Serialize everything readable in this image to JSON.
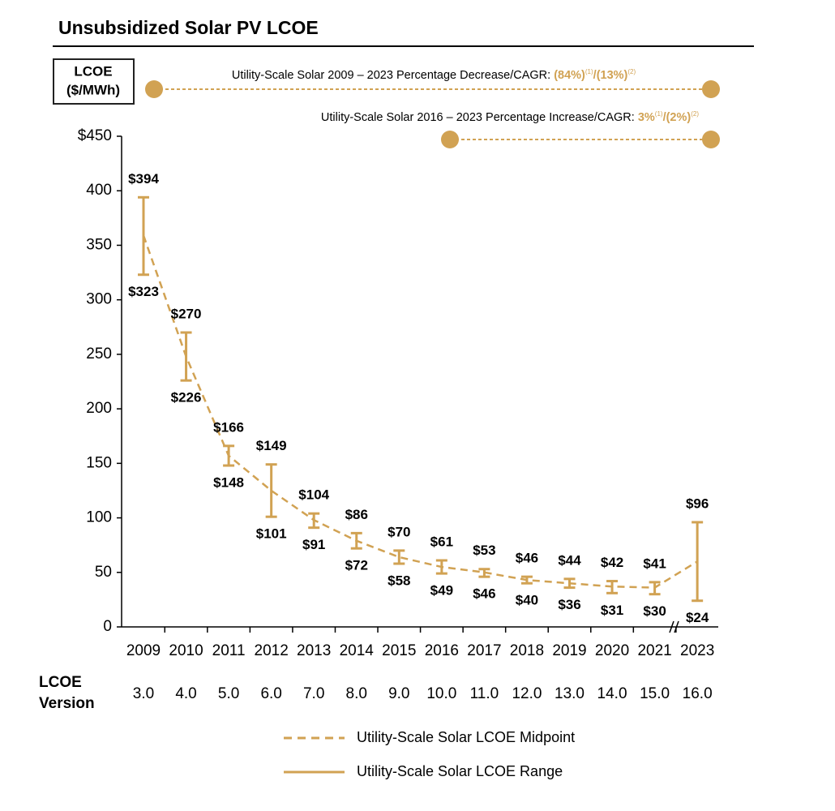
{
  "chart_data": {
    "type": "range",
    "title": "Unsubsidized Solar PV LCOE",
    "ylabel": [
      "LCOE",
      "($/MWh)"
    ],
    "categories": [
      "2009",
      "2010",
      "2011",
      "2012",
      "2013",
      "2014",
      "2015",
      "2016",
      "2017",
      "2018",
      "2019",
      "2020",
      "2021",
      "2023"
    ],
    "version_label": [
      "LCOE",
      "Version"
    ],
    "versions": [
      "3.0",
      "4.0",
      "5.0",
      "6.0",
      "7.0",
      "8.0",
      "9.0",
      "10.0",
      "11.0",
      "12.0",
      "13.0",
      "14.0",
      "15.0",
      "16.0"
    ],
    "ylim": [
      0,
      450
    ],
    "yticks": [
      0,
      50,
      100,
      150,
      200,
      250,
      300,
      350,
      400,
      {
        "value": 450,
        "label": "$450"
      }
    ],
    "series": [
      {
        "name": "Utility-Scale Solar LCOE Midpoint",
        "color": "#d1a253",
        "style": "dashed",
        "values": [
          359,
          248,
          157,
          125,
          98,
          79,
          64,
          55,
          50,
          43,
          40,
          37,
          36,
          60
        ]
      },
      {
        "name": "Utility-Scale Solar LCOE Range",
        "color": "#d1a253",
        "style": "solid",
        "low": [
          323,
          226,
          148,
          101,
          91,
          72,
          58,
          49,
          46,
          40,
          36,
          31,
          30,
          24
        ],
        "high": [
          394,
          270,
          166,
          149,
          104,
          86,
          70,
          61,
          53,
          46,
          44,
          42,
          41,
          96
        ],
        "low_value_labels": [
          "$323",
          "$226",
          "$148",
          "$101",
          "$91",
          "$72",
          "$58",
          "$49",
          "$46",
          "$40",
          "$36",
          "$31",
          "$30",
          "$24"
        ],
        "high_value_labels": [
          "$394",
          "$270",
          "$166",
          "$149",
          "$104",
          "$86",
          "$70",
          "$61",
          "$53",
          "$46",
          "$44",
          "$42",
          "$41",
          "$96"
        ]
      }
    ],
    "annotations": [
      {
        "label": "Utility-Scale Solar 2009 – 2023 Percentage Decrease/CAGR: ",
        "value_a": "(84%)",
        "sup_a": "(1)",
        "sep": "/",
        "value_b": "(13%)",
        "sup_b": "(2)"
      },
      {
        "label": "Utility-Scale Solar 2016 – 2023 Percentage Increase/CAGR: ",
        "value_a": "3%",
        "sup_a": "(1)",
        "sep": "/",
        "value_b": "(2%)",
        "sup_b": "(2)"
      }
    ]
  }
}
